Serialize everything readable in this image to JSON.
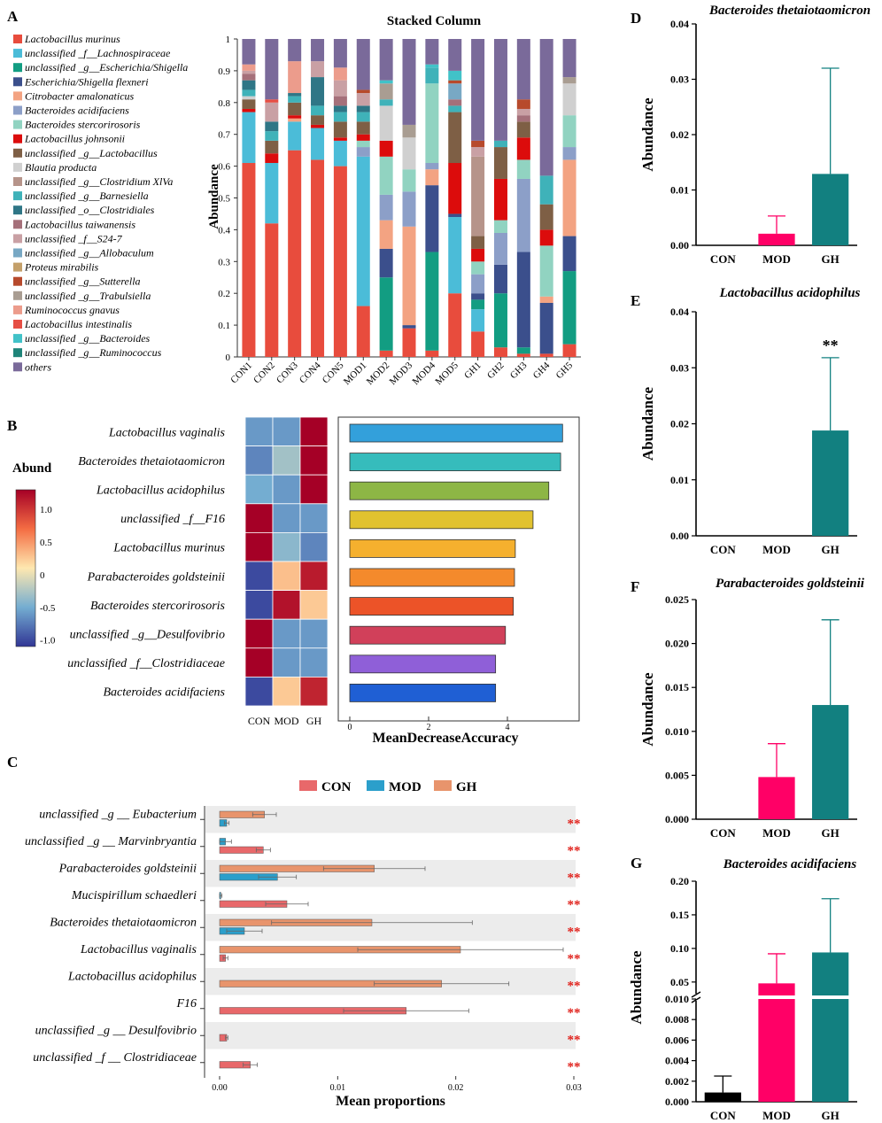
{
  "colors": {
    "CON": "#e8686a",
    "MOD": "#2b9fcb",
    "GH": "#e8946c",
    "barCON": "#000000",
    "barMOD": "#ff0066",
    "barGH": "#128080"
  },
  "panelA": {
    "label": "A",
    "chart_data": {
      "type": "bar",
      "title": "Stacked Column",
      "ylabel": "Abundance",
      "ylim": [
        0,
        1
      ],
      "yticks": [
        "0",
        "0.1",
        "0.2",
        "0.3",
        "0.4",
        "0.5",
        "0.6",
        "0.7",
        "0.8",
        "0.9",
        "1"
      ],
      "categories": [
        "CON1",
        "CON2",
        "CON3",
        "CON4",
        "CON5",
        "MOD1",
        "MOD2",
        "MOD3",
        "MOD4",
        "MOD5",
        "GH1",
        "GH2",
        "GH3",
        "GH4",
        "GH5"
      ],
      "series": [
        {
          "name": "Lactobacillus murinus",
          "color": "#e84c3d",
          "values": [
            0.61,
            0.42,
            0.65,
            0.62,
            0.6,
            0.16,
            0.02,
            0.09,
            0.02,
            0.2,
            0.08,
            0.03,
            0.01,
            0.01,
            0.04
          ]
        },
        {
          "name": "unclassified _f__Lachnospiraceae",
          "color": "#4bbcd8",
          "values": [
            0.16,
            0.19,
            0.09,
            0.1,
            0.08,
            0.47,
            0.0,
            0.0,
            0.0,
            0.24,
            0.07,
            0.0,
            0.0,
            0.0,
            0.0
          ]
        },
        {
          "name": "unclassified _g__Escherichia/Shigella",
          "color": "#129d82",
          "values": [
            0.0,
            0.0,
            0.0,
            0.0,
            0.0,
            0.0,
            0.23,
            0.0,
            0.31,
            0.0,
            0.03,
            0.17,
            0.02,
            0.0,
            0.23
          ]
        },
        {
          "name": "Escherichia/Shigella flexneri",
          "color": "#3b4f8c",
          "values": [
            0.0,
            0.0,
            0.0,
            0.0,
            0.0,
            0.0,
            0.09,
            0.01,
            0.21,
            0.01,
            0.02,
            0.09,
            0.3,
            0.16,
            0.11
          ]
        },
        {
          "name": "Citrobacter amalonaticus",
          "color": "#f3a382",
          "values": [
            0.0,
            0.0,
            0.01,
            0.0,
            0.0,
            0.0,
            0.09,
            0.31,
            0.05,
            0.0,
            0.0,
            0.0,
            0.0,
            0.02,
            0.24
          ]
        },
        {
          "name": "Bacteroides acidifaciens",
          "color": "#8c9fc8",
          "values": [
            0.0,
            0.0,
            0.0,
            0.0,
            0.0,
            0.03,
            0.08,
            0.11,
            0.02,
            0.0,
            0.06,
            0.1,
            0.23,
            0.0,
            0.04
          ]
        },
        {
          "name": "Bacteroides stercorirosoris",
          "color": "#91d3c1",
          "values": [
            0.0,
            0.0,
            0.0,
            0.0,
            0.0,
            0.02,
            0.12,
            0.07,
            0.25,
            0.0,
            0.04,
            0.04,
            0.06,
            0.16,
            0.1
          ]
        },
        {
          "name": "Lactobacillus johnsonii",
          "color": "#dc0c0c",
          "values": [
            0.01,
            0.03,
            0.01,
            0.01,
            0.01,
            0.02,
            0.05,
            0.0,
            0.0,
            0.16,
            0.04,
            0.13,
            0.07,
            0.05,
            0.0
          ]
        },
        {
          "name": "unclassified _g__Lactobacillus",
          "color": "#7e5f45",
          "values": [
            0.03,
            0.04,
            0.04,
            0.03,
            0.05,
            0.04,
            0.0,
            0.0,
            0.0,
            0.16,
            0.04,
            0.1,
            0.05,
            0.08,
            0.0
          ]
        },
        {
          "name": "Blautia producta",
          "color": "#d0d0d0",
          "values": [
            0.01,
            0.0,
            0.0,
            0.0,
            0.0,
            0.0,
            0.11,
            0.1,
            0.0,
            0.0,
            0.0,
            0.0,
            0.0,
            0.0,
            0.1
          ]
        },
        {
          "name": "unclassified _g__Clostridium XlVa",
          "color": "#b6948a",
          "values": [
            0.0,
            0.0,
            0.0,
            0.0,
            0.0,
            0.0,
            0.0,
            0.0,
            0.0,
            0.0,
            0.25,
            0.0,
            0.0,
            0.0,
            0.0
          ]
        },
        {
          "name": "unclassified _g__Barnesiella",
          "color": "#3fb2b9",
          "values": [
            0.02,
            0.03,
            0.02,
            0.03,
            0.03,
            0.03,
            0.02,
            0.0,
            0.05,
            0.02,
            0.0,
            0.02,
            0.0,
            0.09,
            0.0
          ]
        },
        {
          "name": "unclassified _o__Clostridiales",
          "color": "#2f7686",
          "values": [
            0.03,
            0.03,
            0.01,
            0.09,
            0.02,
            0.02,
            0.0,
            0.0,
            0.0,
            0.0,
            0.0,
            0.0,
            0.0,
            0.0,
            0.0
          ]
        },
        {
          "name": "Lactobacillus taiwanensis",
          "color": "#a5707a",
          "values": [
            0.02,
            0.0,
            0.0,
            0.0,
            0.03,
            0.0,
            0.0,
            0.0,
            0.0,
            0.02,
            0.0,
            0.0,
            0.02,
            0.0,
            0.0
          ]
        },
        {
          "name": "unclassified _f__S24-7",
          "color": "#c9a0a4",
          "values": [
            0.01,
            0.06,
            0.0,
            0.05,
            0.05,
            0.04,
            0.0,
            0.0,
            0.0,
            0.0,
            0.03,
            0.0,
            0.02,
            0.0,
            0.0
          ]
        },
        {
          "name": "unclassified _g__Allobaculum",
          "color": "#78a8c4",
          "values": [
            0.0,
            0.0,
            0.0,
            0.0,
            0.0,
            0.0,
            0.0,
            0.0,
            0.0,
            0.05,
            0.0,
            0.0,
            0.0,
            0.0,
            0.0
          ]
        },
        {
          "name": "Proteus mirabilis",
          "color": "#c4a06a",
          "values": [
            0.0,
            0.0,
            0.0,
            0.0,
            0.0,
            0.0,
            0.0,
            0.0,
            0.0,
            0.0,
            0.0,
            0.0,
            0.0,
            0.0,
            0.0
          ]
        },
        {
          "name": "unclassified _g__Sutterella",
          "color": "#b74a2c",
          "values": [
            0.0,
            0.0,
            0.0,
            0.0,
            0.0,
            0.01,
            0.0,
            0.0,
            0.0,
            0.01,
            0.02,
            0.0,
            0.03,
            0.0,
            0.0
          ]
        },
        {
          "name": "unclassified _g__Trabulsiella",
          "color": "#a99d92",
          "values": [
            0.0,
            0.0,
            0.0,
            0.0,
            0.0,
            0.0,
            0.05,
            0.04,
            0.0,
            0.0,
            0.0,
            0.0,
            0.0,
            0.0,
            0.02
          ]
        },
        {
          "name": "Ruminococcus gnavus",
          "color": "#ec9c8c",
          "values": [
            0.02,
            0.0,
            0.1,
            0.0,
            0.04,
            0.0,
            0.0,
            0.0,
            0.0,
            0.0,
            0.0,
            0.0,
            0.0,
            0.0,
            0.0
          ]
        },
        {
          "name": "Lactobacillus intestinalis",
          "color": "#e64e44",
          "values": [
            0.0,
            0.01,
            0.0,
            0.0,
            0.0,
            0.0,
            0.0,
            0.0,
            0.0,
            0.0,
            0.0,
            0.0,
            0.0,
            0.0,
            0.0
          ]
        },
        {
          "name": "unclassified _g__Bacteroides",
          "color": "#41c2c8",
          "values": [
            0.0,
            0.0,
            0.0,
            0.0,
            0.0,
            0.0,
            0.01,
            0.0,
            0.01,
            0.03,
            0.0,
            0.0,
            0.0,
            0.0,
            0.0
          ]
        },
        {
          "name": "unclassified _g__Ruminococcus",
          "color": "#1e8479",
          "values": [
            0.0,
            0.0,
            0.0,
            0.0,
            0.0,
            0.0,
            0.0,
            0.0,
            0.0,
            0.0,
            0.0,
            0.0,
            0.0,
            0.0,
            0.0
          ]
        },
        {
          "name": "others",
          "color": "#7a6a9a",
          "values": [
            0.08,
            0.19,
            0.07,
            0.07,
            0.09,
            0.16,
            0.13,
            0.27,
            0.08,
            0.1,
            0.32,
            0.32,
            0.19,
            0.43,
            0.12
          ]
        }
      ]
    }
  },
  "panelB": {
    "label": "B",
    "chart_data": {
      "type": "heatmap",
      "legend_title": "Abund",
      "scale_ticks": [
        "1.0",
        "0.5",
        "0",
        "-0.5",
        "-1.0"
      ],
      "columns": [
        "CON",
        "MOD",
        "GH"
      ],
      "rows": [
        {
          "name": "Lactobacillus vaginalis",
          "z": [
            -0.7,
            -0.7,
            1.2
          ],
          "mda": 5.4,
          "color": "#33a0db"
        },
        {
          "name": "Bacteroides thetaiotaomicron",
          "z": [
            -0.8,
            -0.4,
            1.2
          ],
          "mda": 5.35,
          "color": "#36bcbc"
        },
        {
          "name": "Lactobacillus acidophilus",
          "z": [
            -0.6,
            -0.7,
            1.2
          ],
          "mda": 5.05,
          "color": "#8db645"
        },
        {
          "name": "unclassified _f__F16",
          "z": [
            1.2,
            -0.7,
            -0.7
          ],
          "mda": 4.65,
          "color": "#e1c22f"
        },
        {
          "name": "Lactobacillus murinus",
          "z": [
            1.2,
            -0.5,
            -0.8
          ],
          "mda": 4.2,
          "color": "#f5b02e"
        },
        {
          "name": "Parabacteroides goldsteinii",
          "z": [
            -1.1,
            0.2,
            1.05
          ],
          "mda": 4.18,
          "color": "#f48a2c"
        },
        {
          "name": "Bacteroides stercorirosoris",
          "z": [
            -1.1,
            1.1,
            0.15
          ],
          "mda": 4.15,
          "color": "#ec5328"
        },
        {
          "name": "unclassified _g__Desulfovibrio",
          "z": [
            1.2,
            -0.7,
            -0.7
          ],
          "mda": 3.95,
          "color": "#d1405a"
        },
        {
          "name": "unclassified _f__Clostridiaceae",
          "z": [
            1.2,
            -0.7,
            -0.7
          ],
          "mda": 3.7,
          "color": "#8f5fd8"
        },
        {
          "name": "Bacteroides acidifaciens",
          "z": [
            -1.1,
            0.15,
            1.0
          ],
          "mda": 3.7,
          "color": "#1f5fd4"
        }
      ],
      "xlabel": "MeanDecreaseAccuracy",
      "xticks": [
        "0",
        "2",
        "4"
      ]
    }
  },
  "panelC": {
    "label": "C",
    "chart_data": {
      "type": "bar",
      "legend": [
        "CON",
        "MOD",
        "GH"
      ],
      "xlabel": "Mean proportions",
      "xticks": [
        "0.00",
        "0.01",
        "0.02",
        "0.03"
      ],
      "xlim": [
        0,
        0.03
      ],
      "signif": "**",
      "rows": [
        {
          "name": "unclassified _g __ Eubacterium",
          "CON": null,
          "MOD": 0.0006,
          "GH": 0.0038,
          "errMOD": 0.0002,
          "errGH": 0.001
        },
        {
          "name": "unclassified _g __ Marvinbryantia",
          "CON": 0.0037,
          "MOD": 0.0005,
          "GH": null,
          "errCON": 0.0006,
          "errMOD": 0.0005
        },
        {
          "name": "Parabacteroides goldsteinii",
          "CON": null,
          "MOD": 0.0049,
          "GH": 0.0131,
          "errMOD": 0.0016,
          "errGH": 0.0043
        },
        {
          "name": "Mucispirillum schaedleri",
          "CON": 0.0057,
          "MOD": 0.0001,
          "GH": null,
          "errCON": 0.0018,
          "errMOD": 0.0001
        },
        {
          "name": "Bacteroides thetaiotaomicron",
          "CON": null,
          "MOD": 0.0021,
          "GH": 0.0129,
          "errMOD": 0.0015,
          "errGH": 0.0085
        },
        {
          "name": "Lactobacillus vaginalis",
          "CON": 0.0005,
          "MOD": null,
          "GH": 0.0204,
          "errCON": 0.0002,
          "errGH": 0.0087
        },
        {
          "name": "Lactobacillus acidophilus",
          "CON": null,
          "MOD": null,
          "GH": 0.0188,
          "errGH": 0.0057
        },
        {
          "name": "F16",
          "CON": 0.0158,
          "MOD": null,
          "GH": null,
          "errCON": 0.0053
        },
        {
          "name": "unclassified _g __ Desulfovibrio",
          "CON": 0.0006,
          "MOD": null,
          "GH": null,
          "errCON": 0.0001
        },
        {
          "name": "unclassified _f __ Clostridiaceae",
          "CON": 0.0026,
          "MOD": null,
          "GH": null,
          "errCON": 0.0006
        }
      ]
    }
  },
  "panelD": {
    "label": "D",
    "chart_data": {
      "type": "bar",
      "title": "Bacteroides thetaiotaomicron",
      "ylabel": "Abundance",
      "categories": [
        "CON",
        "MOD",
        "GH"
      ],
      "values": [
        0,
        0.0021,
        0.0129
      ],
      "errors": [
        0,
        0.0032,
        0.0191
      ],
      "ylim": [
        0,
        0.04
      ],
      "yticks": [
        "0.00",
        "0.01",
        "0.02",
        "0.03",
        "0.04"
      ],
      "star": ""
    }
  },
  "panelE": {
    "label": "E",
    "chart_data": {
      "type": "bar",
      "title": "Lactobacillus acidophilus",
      "ylabel": "Abundance",
      "categories": [
        "CON",
        "MOD",
        "GH"
      ],
      "values": [
        0,
        0,
        0.0188
      ],
      "errors": [
        0,
        0,
        0.013
      ],
      "ylim": [
        0,
        0.04
      ],
      "yticks": [
        "0.00",
        "0.01",
        "0.02",
        "0.03",
        "0.04"
      ],
      "star": "**"
    }
  },
  "panelF": {
    "label": "F",
    "chart_data": {
      "type": "bar",
      "title": "Parabacteroides goldsteinii",
      "ylabel": "Abundance",
      "categories": [
        "CON",
        "MOD",
        "GH"
      ],
      "values": [
        0,
        0.0048,
        0.013
      ],
      "errors": [
        0,
        0.0038,
        0.0097
      ],
      "ylim": [
        0,
        0.025
      ],
      "yticks": [
        "0.000",
        "0.005",
        "0.010",
        "0.015",
        "0.020",
        "0.025"
      ],
      "star": ""
    }
  },
  "panelG": {
    "label": "G",
    "chart_data": {
      "type": "bar",
      "title": "Bacteroides acidifaciens",
      "ylabel": "Abundance",
      "categories": [
        "CON",
        "MOD",
        "GH"
      ],
      "values": [
        0.0009,
        0.048,
        0.094
      ],
      "errors": [
        0.0016,
        0.044,
        0.08
      ],
      "yticks_low": [
        "0.000",
        "0.002",
        "0.004",
        "0.006",
        "0.008",
        "0.010"
      ],
      "yticks_high": [
        "0.05",
        "0.10",
        "0.15",
        "0.20"
      ],
      "broken_axis": [
        0.01,
        0.03
      ]
    }
  }
}
